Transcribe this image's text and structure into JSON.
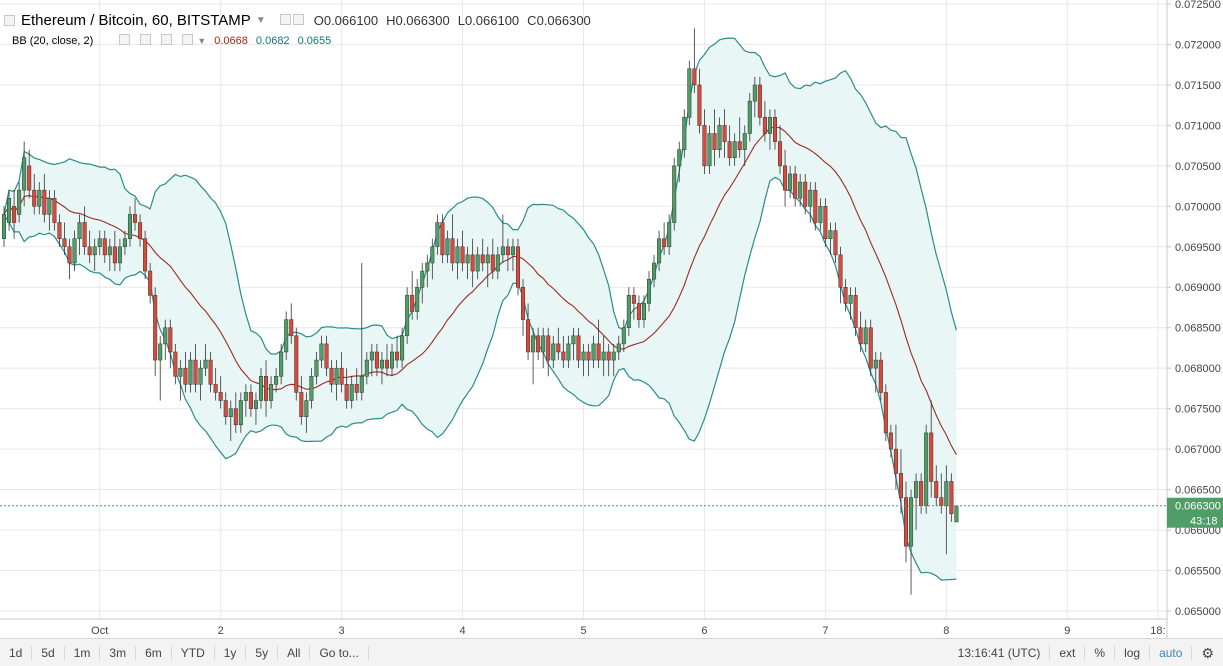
{
  "header": {
    "symbol": "Ethereum / Bitcoin, 60, BITSTAMP",
    "ohlc": [
      {
        "k": "O",
        "v": "0.066100"
      },
      {
        "k": "H",
        "v": "0.066300"
      },
      {
        "k": "L",
        "v": "0.066100"
      },
      {
        "k": "C",
        "v": "0.066300"
      }
    ]
  },
  "indicator": {
    "label": "BB (20, close, 2)",
    "values": [
      "0.0668",
      "0.0682",
      "0.0655"
    ],
    "colors": [
      "#a52714",
      "#0e7a7a",
      "#0e7a7a"
    ]
  },
  "price_tag": {
    "price": "0.066300",
    "countdown": "43:18"
  },
  "bottom_bar": {
    "ranges": [
      "1d",
      "5d",
      "1m",
      "3m",
      "6m",
      "YTD",
      "1y",
      "5y",
      "All"
    ],
    "goto": "Go to...",
    "time": "13:16:41 (UTC)",
    "options": [
      "ext",
      "%",
      "log",
      "auto"
    ]
  },
  "colors": {
    "up": "#4f9e67",
    "down": "#d94a3b",
    "band": "#2a8c8c",
    "basis": "#9c2b22",
    "band_fill": "#e9f6f6",
    "grid": "#e8e8e8",
    "price_line": "#4f9e67"
  },
  "chart_data": {
    "type": "candlestick",
    "y_ticks": [
      "0.072500",
      "0.072000",
      "0.071500",
      "0.071000",
      "0.070500",
      "0.070000",
      "0.069500",
      "0.069000",
      "0.068500",
      "0.068000",
      "0.067500",
      "0.067000",
      "0.066500",
      "0.066000",
      "0.065500",
      "0.065000"
    ],
    "ylim": [
      0.0649,
      0.07255
    ],
    "x_labels": [
      {
        "label": "Oct",
        "t": 0
      },
      {
        "label": "2",
        "t": 24
      },
      {
        "label": "3",
        "t": 48
      },
      {
        "label": "4",
        "t": 72
      },
      {
        "label": "5",
        "t": 96
      },
      {
        "label": "6",
        "t": 120
      },
      {
        "label": "7",
        "t": 144
      },
      {
        "label": "8",
        "t": 168
      },
      {
        "label": "9",
        "t": 192
      },
      {
        "label": "18:",
        "t": 210
      }
    ],
    "xlim": [
      -19,
      211
    ],
    "candles_start_t": -19,
    "candles": [
      [
        0.0696,
        0.07,
        0.0695,
        0.0699
      ],
      [
        0.0698,
        0.0702,
        0.0697,
        0.0701
      ],
      [
        0.07,
        0.0702,
        0.0696,
        0.0698
      ],
      [
        0.0699,
        0.0703,
        0.0698,
        0.0702
      ],
      [
        0.0702,
        0.0708,
        0.07,
        0.0706
      ],
      [
        0.0705,
        0.0707,
        0.0701,
        0.0702
      ],
      [
        0.0702,
        0.0704,
        0.0699,
        0.07
      ],
      [
        0.07,
        0.0703,
        0.0699,
        0.0702
      ],
      [
        0.0702,
        0.0704,
        0.0698,
        0.0699
      ],
      [
        0.0699,
        0.0702,
        0.0697,
        0.0701
      ],
      [
        0.0701,
        0.0702,
        0.0697,
        0.0698
      ],
      [
        0.0698,
        0.0699,
        0.0695,
        0.0696
      ],
      [
        0.0696,
        0.0698,
        0.0694,
        0.0695
      ],
      [
        0.0695,
        0.0696,
        0.0691,
        0.0693
      ],
      [
        0.0693,
        0.0697,
        0.0692,
        0.0696
      ],
      [
        0.0696,
        0.0699,
        0.0694,
        0.0698
      ],
      [
        0.0698,
        0.07,
        0.0694,
        0.0695
      ],
      [
        0.0695,
        0.0697,
        0.0693,
        0.0694
      ],
      [
        0.0694,
        0.0696,
        0.0692,
        0.0695
      ],
      [
        0.0695,
        0.0697,
        0.0694,
        0.0696
      ],
      [
        0.0696,
        0.0697,
        0.0693,
        0.0694
      ],
      [
        0.0694,
        0.0696,
        0.0692,
        0.0695
      ],
      [
        0.0695,
        0.0697,
        0.0692,
        0.0693
      ],
      [
        0.0693,
        0.0696,
        0.0692,
        0.0695
      ],
      [
        0.0695,
        0.0697,
        0.0694,
        0.0696
      ],
      [
        0.0696,
        0.07,
        0.0695,
        0.0699
      ],
      [
        0.0699,
        0.0701,
        0.0697,
        0.0698
      ],
      [
        0.0698,
        0.0699,
        0.0695,
        0.0696
      ],
      [
        0.0696,
        0.0697,
        0.0691,
        0.0692
      ],
      [
        0.0692,
        0.0693,
        0.0688,
        0.0689
      ],
      [
        0.0689,
        0.069,
        0.0679,
        0.0681
      ],
      [
        0.0681,
        0.0684,
        0.0676,
        0.0683
      ],
      [
        0.0683,
        0.0686,
        0.0681,
        0.0685
      ],
      [
        0.0685,
        0.0686,
        0.068,
        0.0682
      ],
      [
        0.0682,
        0.0683,
        0.0678,
        0.0679
      ],
      [
        0.0679,
        0.0681,
        0.0676,
        0.068
      ],
      [
        0.068,
        0.0682,
        0.0677,
        0.0678
      ],
      [
        0.0678,
        0.0682,
        0.0677,
        0.0681
      ],
      [
        0.0681,
        0.0683,
        0.0677,
        0.0678
      ],
      [
        0.0678,
        0.0681,
        0.0676,
        0.068
      ],
      [
        0.068,
        0.0683,
        0.0679,
        0.0681
      ],
      [
        0.0681,
        0.0682,
        0.0677,
        0.0678
      ],
      [
        0.0678,
        0.068,
        0.0676,
        0.0677
      ],
      [
        0.0677,
        0.0679,
        0.0675,
        0.0676
      ],
      [
        0.0676,
        0.0677,
        0.0673,
        0.0674
      ],
      [
        0.0674,
        0.0676,
        0.0671,
        0.0675
      ],
      [
        0.0675,
        0.0677,
        0.0672,
        0.0673
      ],
      [
        0.0673,
        0.0677,
        0.0672,
        0.0676
      ],
      [
        0.0676,
        0.0678,
        0.0674,
        0.0677
      ],
      [
        0.0677,
        0.0678,
        0.0674,
        0.0675
      ],
      [
        0.0675,
        0.0677,
        0.0673,
        0.0676
      ],
      [
        0.0676,
        0.068,
        0.0675,
        0.0679
      ],
      [
        0.0679,
        0.0681,
        0.0674,
        0.0676
      ],
      [
        0.0676,
        0.0679,
        0.0675,
        0.0678
      ],
      [
        0.0678,
        0.068,
        0.0677,
        0.0679
      ],
      [
        0.0679,
        0.0683,
        0.0678,
        0.0682
      ],
      [
        0.0682,
        0.0687,
        0.0681,
        0.0686
      ],
      [
        0.0686,
        0.0688,
        0.0683,
        0.0684
      ],
      [
        0.0684,
        0.0685,
        0.0676,
        0.0677
      ],
      [
        0.0677,
        0.0679,
        0.0673,
        0.0674
      ],
      [
        0.0674,
        0.0677,
        0.0672,
        0.0676
      ],
      [
        0.0676,
        0.068,
        0.0675,
        0.0679
      ],
      [
        0.0679,
        0.0682,
        0.0678,
        0.0681
      ],
      [
        0.0681,
        0.0684,
        0.068,
        0.0683
      ],
      [
        0.0683,
        0.0684,
        0.0679,
        0.068
      ],
      [
        0.068,
        0.0681,
        0.0677,
        0.0678
      ],
      [
        0.0678,
        0.0681,
        0.0676,
        0.068
      ],
      [
        0.068,
        0.0682,
        0.0677,
        0.0678
      ],
      [
        0.0678,
        0.068,
        0.0675,
        0.0676
      ],
      [
        0.0676,
        0.0679,
        0.0675,
        0.0678
      ],
      [
        0.0678,
        0.068,
        0.0676,
        0.0677
      ],
      [
        0.0677,
        0.0693,
        0.0676,
        0.0679
      ],
      [
        0.0679,
        0.0682,
        0.0678,
        0.0681
      ],
      [
        0.0681,
        0.0683,
        0.0679,
        0.0682
      ],
      [
        0.0682,
        0.0683,
        0.0679,
        0.068
      ],
      [
        0.068,
        0.0682,
        0.0678,
        0.0681
      ],
      [
        0.0681,
        0.0683,
        0.0679,
        0.068
      ],
      [
        0.068,
        0.0683,
        0.0679,
        0.0682
      ],
      [
        0.0682,
        0.0684,
        0.068,
        0.0681
      ],
      [
        0.0681,
        0.0685,
        0.068,
        0.0684
      ],
      [
        0.0684,
        0.069,
        0.0683,
        0.0689
      ],
      [
        0.0689,
        0.0692,
        0.0686,
        0.0687
      ],
      [
        0.0687,
        0.0691,
        0.0686,
        0.069
      ],
      [
        0.069,
        0.0693,
        0.0688,
        0.0692
      ],
      [
        0.0692,
        0.0694,
        0.069,
        0.0693
      ],
      [
        0.0693,
        0.0696,
        0.0691,
        0.0695
      ],
      [
        0.0695,
        0.0699,
        0.0694,
        0.0698
      ],
      [
        0.0698,
        0.0699,
        0.0693,
        0.0694
      ],
      [
        0.0694,
        0.0697,
        0.0693,
        0.0696
      ],
      [
        0.0696,
        0.0699,
        0.0692,
        0.0693
      ],
      [
        0.0693,
        0.0696,
        0.0691,
        0.0695
      ],
      [
        0.0695,
        0.0697,
        0.0692,
        0.0693
      ],
      [
        0.0693,
        0.0695,
        0.0691,
        0.0694
      ],
      [
        0.0694,
        0.0696,
        0.069,
        0.0692
      ],
      [
        0.0692,
        0.0695,
        0.0691,
        0.0694
      ],
      [
        0.0694,
        0.0696,
        0.0692,
        0.0693
      ],
      [
        0.0693,
        0.0695,
        0.069,
        0.0694
      ],
      [
        0.0694,
        0.0696,
        0.0691,
        0.0692
      ],
      [
        0.0692,
        0.0695,
        0.0691,
        0.0694
      ],
      [
        0.0694,
        0.0699,
        0.0693,
        0.0695
      ],
      [
        0.0695,
        0.0696,
        0.0692,
        0.0694
      ],
      [
        0.0694,
        0.0696,
        0.0692,
        0.0695
      ],
      [
        0.0695,
        0.0696,
        0.0689,
        0.069
      ],
      [
        0.069,
        0.0691,
        0.0684,
        0.0686
      ],
      [
        0.0686,
        0.0688,
        0.0681,
        0.0682
      ],
      [
        0.0682,
        0.0685,
        0.0678,
        0.0684
      ],
      [
        0.0684,
        0.0685,
        0.0681,
        0.0682
      ],
      [
        0.0682,
        0.0685,
        0.068,
        0.0684
      ],
      [
        0.0684,
        0.0685,
        0.0679,
        0.0681
      ],
      [
        0.0681,
        0.0684,
        0.068,
        0.0683
      ],
      [
        0.0683,
        0.0685,
        0.0681,
        0.0682
      ],
      [
        0.0682,
        0.0684,
        0.068,
        0.0681
      ],
      [
        0.0681,
        0.0684,
        0.068,
        0.0683
      ],
      [
        0.0683,
        0.0685,
        0.0681,
        0.0684
      ],
      [
        0.0684,
        0.0685,
        0.068,
        0.0681
      ],
      [
        0.0681,
        0.0683,
        0.0679,
        0.0682
      ],
      [
        0.0682,
        0.0683,
        0.0679,
        0.0681
      ],
      [
        0.0681,
        0.0684,
        0.068,
        0.0683
      ],
      [
        0.0683,
        0.0686,
        0.068,
        0.0681
      ],
      [
        0.0681,
        0.0684,
        0.0679,
        0.0682
      ],
      [
        0.0682,
        0.0683,
        0.0679,
        0.0681
      ],
      [
        0.0681,
        0.0683,
        0.0679,
        0.0682
      ],
      [
        0.0682,
        0.0684,
        0.0681,
        0.0683
      ],
      [
        0.0683,
        0.0686,
        0.0682,
        0.0685
      ],
      [
        0.0685,
        0.069,
        0.0684,
        0.0689
      ],
      [
        0.0689,
        0.069,
        0.0686,
        0.0688
      ],
      [
        0.0688,
        0.0689,
        0.0685,
        0.0686
      ],
      [
        0.0686,
        0.0689,
        0.0685,
        0.0688
      ],
      [
        0.0688,
        0.0692,
        0.0687,
        0.0691
      ],
      [
        0.0691,
        0.0694,
        0.069,
        0.0693
      ],
      [
        0.0693,
        0.0697,
        0.0692,
        0.0696
      ],
      [
        0.0696,
        0.0698,
        0.0694,
        0.0695
      ],
      [
        0.0695,
        0.0699,
        0.0694,
        0.0698
      ],
      [
        0.0698,
        0.0706,
        0.0697,
        0.0705
      ],
      [
        0.0705,
        0.0708,
        0.0703,
        0.0707
      ],
      [
        0.0707,
        0.0712,
        0.0706,
        0.0711
      ],
      [
        0.0711,
        0.0718,
        0.071,
        0.0717
      ],
      [
        0.0717,
        0.0722,
        0.0714,
        0.0715
      ],
      [
        0.0715,
        0.0717,
        0.0709,
        0.071
      ],
      [
        0.071,
        0.0712,
        0.0704,
        0.0705
      ],
      [
        0.0705,
        0.071,
        0.0704,
        0.0709
      ],
      [
        0.0709,
        0.0712,
        0.0705,
        0.0707
      ],
      [
        0.0707,
        0.0711,
        0.0706,
        0.071
      ],
      [
        0.071,
        0.0712,
        0.0706,
        0.0708
      ],
      [
        0.0708,
        0.071,
        0.0705,
        0.0706
      ],
      [
        0.0706,
        0.0709,
        0.0705,
        0.0708
      ],
      [
        0.0708,
        0.0711,
        0.0706,
        0.0707
      ],
      [
        0.0707,
        0.071,
        0.0705,
        0.0709
      ],
      [
        0.0709,
        0.0714,
        0.0708,
        0.0713
      ],
      [
        0.0713,
        0.0716,
        0.0711,
        0.0715
      ],
      [
        0.0715,
        0.0716,
        0.071,
        0.0711
      ],
      [
        0.0711,
        0.0713,
        0.0708,
        0.0709
      ],
      [
        0.0709,
        0.0712,
        0.0707,
        0.0711
      ],
      [
        0.0711,
        0.0712,
        0.0707,
        0.0708
      ],
      [
        0.0708,
        0.071,
        0.0704,
        0.0705
      ],
      [
        0.0705,
        0.0707,
        0.07,
        0.0702
      ],
      [
        0.0702,
        0.0705,
        0.0701,
        0.0704
      ],
      [
        0.0704,
        0.0705,
        0.07,
        0.0701
      ],
      [
        0.0701,
        0.0704,
        0.07,
        0.0703
      ],
      [
        0.0703,
        0.0704,
        0.0699,
        0.07
      ],
      [
        0.07,
        0.0703,
        0.0698,
        0.0702
      ],
      [
        0.0702,
        0.0703,
        0.0697,
        0.0698
      ],
      [
        0.0698,
        0.0701,
        0.0697,
        0.07
      ],
      [
        0.07,
        0.0701,
        0.0695,
        0.0696
      ],
      [
        0.0696,
        0.0698,
        0.0694,
        0.0697
      ],
      [
        0.0697,
        0.0698,
        0.0693,
        0.0694
      ],
      [
        0.0694,
        0.0695,
        0.0688,
        0.069
      ],
      [
        0.069,
        0.0691,
        0.0687,
        0.0688
      ],
      [
        0.0688,
        0.069,
        0.0686,
        0.0689
      ],
      [
        0.0689,
        0.069,
        0.0684,
        0.0685
      ],
      [
        0.0685,
        0.0687,
        0.0682,
        0.0683
      ],
      [
        0.0683,
        0.0686,
        0.0682,
        0.0685
      ],
      [
        0.0685,
        0.0686,
        0.0679,
        0.068
      ],
      [
        0.068,
        0.0682,
        0.0677,
        0.0681
      ],
      [
        0.0681,
        0.0682,
        0.0676,
        0.0677
      ],
      [
        0.0677,
        0.0678,
        0.0671,
        0.0672
      ],
      [
        0.0672,
        0.0673,
        0.0669,
        0.067
      ],
      [
        0.067,
        0.0673,
        0.0665,
        0.0667
      ],
      [
        0.0667,
        0.067,
        0.0662,
        0.0664
      ],
      [
        0.0664,
        0.0666,
        0.0656,
        0.0658
      ],
      [
        0.0658,
        0.0665,
        0.0652,
        0.0664
      ],
      [
        0.0664,
        0.0667,
        0.066,
        0.0666
      ],
      [
        0.0666,
        0.0667,
        0.0662,
        0.0663
      ],
      [
        0.0663,
        0.0673,
        0.0662,
        0.0672
      ],
      [
        0.0672,
        0.0676,
        0.0664,
        0.0666
      ],
      [
        0.0666,
        0.0668,
        0.0663,
        0.0664
      ],
      [
        0.0664,
        0.0667,
        0.0662,
        0.0663
      ],
      [
        0.0663,
        0.0668,
        0.0657,
        0.0666
      ],
      [
        0.0666,
        0.0667,
        0.0661,
        0.0662
      ],
      [
        0.0661,
        0.0663,
        0.0661,
        0.0663
      ]
    ]
  }
}
